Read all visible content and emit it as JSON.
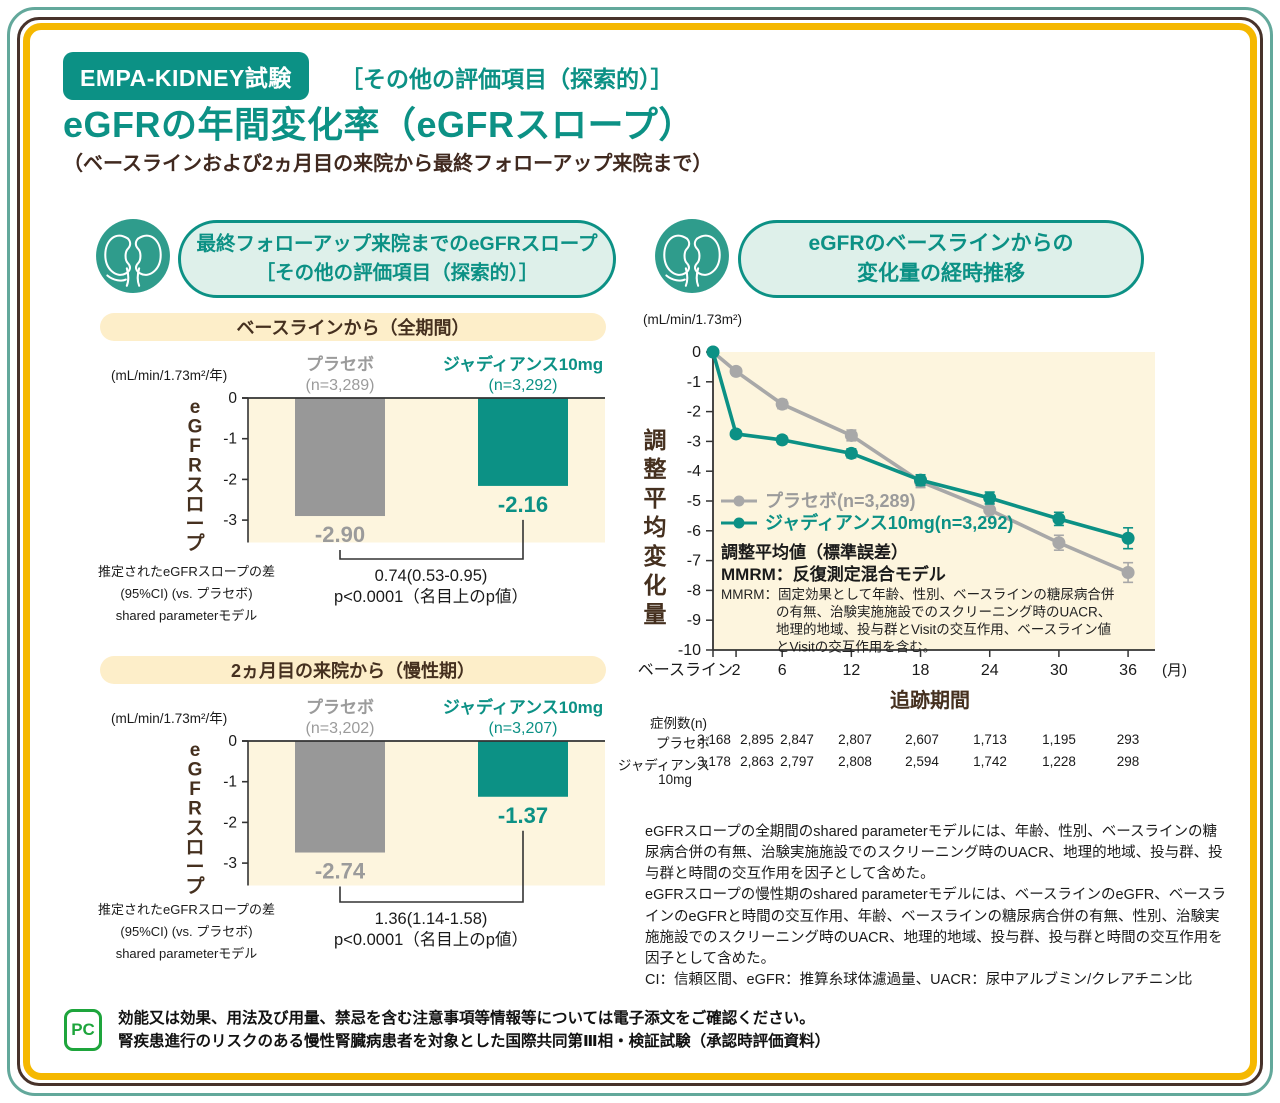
{
  "header": {
    "badge": "EMPA-KIDNEY試験",
    "tag": "［その他の評価項目（探索的）］",
    "title": "eGFRの年間変化率（eGFRスロープ）",
    "subtitle": "（ベースラインおよび2ヵ月目の来院から最終フォローアップ来院まで）"
  },
  "left_panel": {
    "header_line1": "最終フォローアップ来院までのeGFRスロープ",
    "header_line2": "［その他の評価項目（探索的）］"
  },
  "right_panel": {
    "header_line1": "eGFRのベースラインからの",
    "header_line2": "変化量の経時推移"
  },
  "colors": {
    "teal": "#0c9185",
    "gray_bar": "#989898",
    "gray_text": "#9b9b9b",
    "cream_plot": "#fdf5de",
    "band_yellow": "#fdeec9",
    "brown_text": "#45301f",
    "frame_gold": "#f5b800",
    "frame_teal": "#63a89b",
    "frame_brown": "#48322a",
    "pc_green": "#1ea53c"
  },
  "chart_data": [
    {
      "id": "egfr-slope-full-period",
      "type": "bar",
      "title": "ベースラインから（全期間）",
      "unit": "(mL/min/1.73m²/年)",
      "ylabel": "eGFRスロープ",
      "ylim": [
        -3.55,
        0
      ],
      "yticks": [
        0,
        -1,
        -2,
        -3
      ],
      "categories": [
        "プラセボ",
        "ジャディアンス10mg"
      ],
      "n_labels": [
        "(n=3,289)",
        "(n=3,292)"
      ],
      "values": [
        -2.9,
        -2.16
      ],
      "value_labels": [
        "-2.90",
        "-2.16"
      ],
      "bar_colors": [
        "#989898",
        "#0c9185"
      ],
      "label_colors": [
        "#9b9b9b",
        "#0c9185"
      ],
      "difference_line1": "0.74(0.53-0.95)",
      "difference_line2": "p<0.0001（名目上のp値）",
      "footnote": "推定されたeGFRスロープの差\n(95%CI) (vs. プラセボ)\nshared parameterモデル"
    },
    {
      "id": "egfr-slope-chronic",
      "type": "bar",
      "title": "2ヵ月目の来院から（慢性期）",
      "unit": "(mL/min/1.73m²/年)",
      "ylabel": "eGFRスロープ",
      "ylim": [
        -3.55,
        0
      ],
      "yticks": [
        0,
        -1,
        -2,
        -3
      ],
      "categories": [
        "プラセボ",
        "ジャディアンス10mg"
      ],
      "n_labels": [
        "(n=3,202)",
        "(n=3,207)"
      ],
      "values": [
        -2.74,
        -1.37
      ],
      "value_labels": [
        "-2.74",
        "-1.37"
      ],
      "bar_colors": [
        "#989898",
        "#0c9185"
      ],
      "label_colors": [
        "#9b9b9b",
        "#0c9185"
      ],
      "difference_line1": "1.36(1.14-1.58)",
      "difference_line2": "p<0.0001（名目上のp値）",
      "footnote": "推定されたeGFRスロープの差\n(95%CI) (vs. プラセボ)\nshared parameterモデル"
    },
    {
      "id": "egfr-change-over-time",
      "type": "line",
      "unit": "(mL/min/1.73m²)",
      "ylabel": "調整平均変化量",
      "xlabel": "追跡期間",
      "x_unit": "(月)",
      "x_tick_labels": [
        "ベースライン",
        "2",
        "6",
        "12",
        "18",
        "24",
        "30",
        "36"
      ],
      "x_months": [
        0,
        2,
        6,
        12,
        18,
        24,
        30,
        36
      ],
      "ylim": [
        -10,
        0
      ],
      "legend_position": "inside-left",
      "grid": false,
      "series": [
        {
          "name": "プラセボ(n=3,289)",
          "color": "#a8a8a8",
          "text_color": "#9b9b9b",
          "values": [
            0,
            -0.65,
            -1.75,
            -2.8,
            -4.35,
            -5.3,
            -6.4,
            -7.4
          ],
          "se": [
            0,
            0.12,
            0.15,
            0.18,
            0.2,
            0.22,
            0.25,
            0.33
          ]
        },
        {
          "name": "ジャディアンス10mg(n=3,292)",
          "color": "#0c9185",
          "text_color": "#0c9185",
          "values": [
            0,
            -2.75,
            -2.95,
            -3.4,
            -4.3,
            -4.9,
            -5.6,
            -6.25
          ],
          "se": [
            0,
            0.12,
            0.13,
            0.15,
            0.18,
            0.2,
            0.22,
            0.35
          ]
        }
      ],
      "annotations": [
        "調整平均値（標準誤差）",
        "MMRM：反復測定混合モデル"
      ],
      "mmrm_note_lines": [
        "MMRM：固定効果として年齢、性別、ベースラインの糖尿病合併",
        "の有無、治験実施施設でのスクリーニング時のUACR、",
        "地理的地域、投与群とVisitの交互作用、ベースライン値",
        "とVisitの交互作用を含む。"
      ],
      "counts": {
        "header": "症例数(n)",
        "rows": [
          {
            "label": "プラセボ",
            "label2": "",
            "values": [
              "3,168",
              "2,895",
              "2,847",
              "2,807",
              "2,607",
              "1,713",
              "1,195",
              "293"
            ]
          },
          {
            "label": "ジャディアンス",
            "label2": "10mg",
            "values": [
              "3,178",
              "2,863",
              "2,797",
              "2,808",
              "2,594",
              "1,742",
              "1,228",
              "298"
            ]
          }
        ]
      }
    }
  ],
  "egfr_footnote": {
    "para1": "eGFRスロープの全期間のshared parameterモデルには、年齢、性別、ベースラインの糖尿病合併の有無、治験実施施設でのスクリーニング時のUACR、地理的地域、投与群、投与群と時間の交互作用を因子として含めた。",
    "para2": "eGFRスロープの慢性期のshared parameterモデルには、ベースラインのeGFR、ベースラインのeGFRと時間の交互作用、年齢、ベースラインの糖尿病合併の有無、性別、治験実施施設でのスクリーニング時のUACR、地理的地域、投与群、投与群と時間の交互作用を因子として含めた。",
    "para3": "CI：信頼区間、eGFR：推算糸球体濾過量、UACR：尿中アルブミン/クレアチニン比"
  },
  "footer": {
    "pc_label": "PC",
    "line1": "効能又は効果、用法及び用量、禁忌を含む注意事項等情報等については電子添文をご確認ください。",
    "line2": "腎疾患進行のリスクのある慢性腎臓病患者を対象とした国際共同第Ⅲ相・検証試験（承認時評価資料）"
  }
}
